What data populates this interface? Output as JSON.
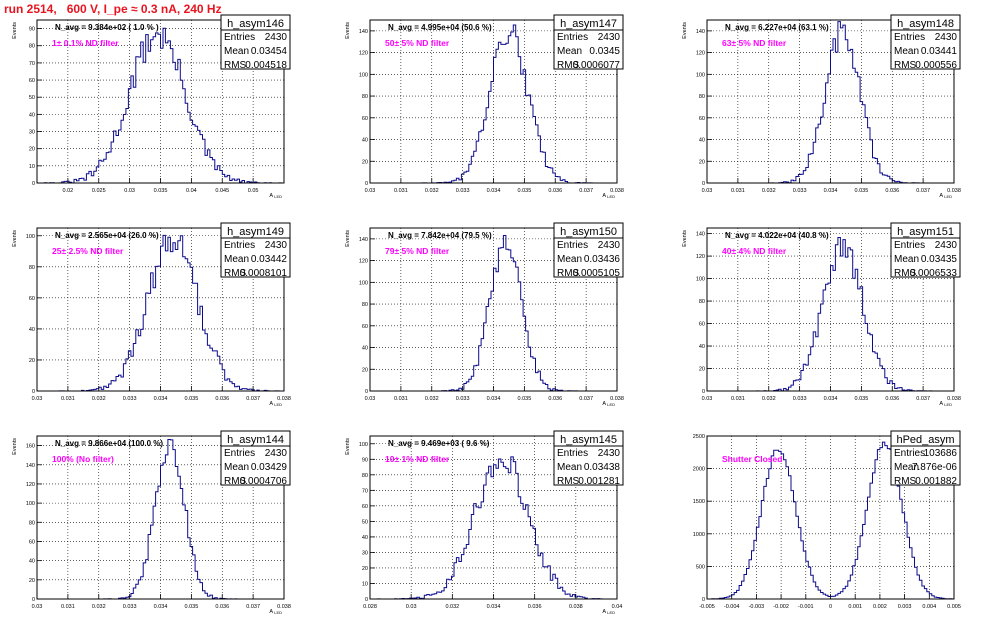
{
  "page": {
    "title": "run 2514,   600 V, I_pe ≈ 0.3 nA, 240 Hz"
  },
  "stat_labels": {
    "entries": "Entries",
    "mean": "Mean",
    "rms": "RMS"
  },
  "colors": {
    "histogram": "#0b0b8c",
    "title": "#e8141f",
    "annotation": "#ff00ff",
    "frame": "#000000",
    "grid": "#000000"
  },
  "chart_data": [
    {
      "type": "histogram",
      "name": "h_asym146",
      "ylabel": "Events",
      "xlabel": "A_LED",
      "xlim": [
        0.015,
        0.055
      ],
      "ylim": [
        0,
        95
      ],
      "xticks": [
        "0.02",
        "0.025",
        "0.03",
        "0.035",
        "0.04",
        "0.045",
        "0.05"
      ],
      "yticks": [
        "0",
        "10",
        "20",
        "30",
        "40",
        "50",
        "60",
        "70",
        "80",
        "90"
      ],
      "yticks_values": [
        0,
        10,
        20,
        30,
        40,
        50,
        60,
        70,
        80,
        90
      ],
      "xticks_values": [
        0.02,
        0.025,
        0.03,
        0.035,
        0.04,
        0.045,
        0.05
      ],
      "header": "N_avg = 9.384e+02 ( 1.0 % )",
      "annotation": "1± 0.1% ND filter",
      "stats": {
        "entries": "2430",
        "mean": "0.03454",
        "rms": "0.004518"
      },
      "shape": {
        "peaks": [
          [
            0.0345,
            0.0045,
            87
          ]
        ]
      }
    },
    {
      "type": "histogram",
      "name": "h_asym147",
      "ylabel": "Events",
      "xlabel": "A_LED",
      "xlim": [
        0.03,
        0.038
      ],
      "ylim": [
        0,
        150
      ],
      "xticks": [
        "0.03",
        "0.031",
        "0.032",
        "0.033",
        "0.034",
        "0.035",
        "0.036",
        "0.037",
        "0.038"
      ],
      "xticks_values": [
        0.03,
        0.031,
        0.032,
        0.033,
        0.034,
        0.035,
        0.036,
        0.037,
        0.038
      ],
      "yticks": [
        "0",
        "20",
        "40",
        "60",
        "80",
        "100",
        "120",
        "140"
      ],
      "yticks_values": [
        0,
        20,
        40,
        60,
        80,
        100,
        120,
        140
      ],
      "header": "N_avg = 4.995e+04 (50.6 %)",
      "annotation": "50± 5% ND filter",
      "stats": {
        "entries": "2430",
        "mean": "0.0345",
        "rms": "0.0006077"
      },
      "shape": {
        "peaks": [
          [
            0.0345,
            0.00061,
            140
          ]
        ]
      }
    },
    {
      "type": "histogram",
      "name": "h_asym148",
      "ylabel": "Events",
      "xlabel": "A_LED",
      "xlim": [
        0.03,
        0.038
      ],
      "ylim": [
        0,
        150
      ],
      "xticks": [
        "0.03",
        "0.031",
        "0.032",
        "0.033",
        "0.034",
        "0.035",
        "0.036",
        "0.037",
        "0.038"
      ],
      "xticks_values": [
        0.03,
        0.031,
        0.032,
        0.033,
        0.034,
        0.035,
        0.036,
        0.037,
        0.038
      ],
      "yticks": [
        "0",
        "20",
        "40",
        "60",
        "80",
        "100",
        "120",
        "140"
      ],
      "yticks_values": [
        0,
        20,
        40,
        60,
        80,
        100,
        120,
        140
      ],
      "header": "N_avg = 6.227e+04 (63.1 %)",
      "annotation": "63± 5% ND filter",
      "stats": {
        "entries": "2430",
        "mean": "0.03441",
        "rms": "0.000556"
      },
      "shape": {
        "peaks": [
          [
            0.0344,
            0.00056,
            140
          ]
        ]
      }
    },
    {
      "type": "histogram",
      "name": "h_asym149",
      "ylabel": "Events",
      "xlabel": "A_LED",
      "xlim": [
        0.03,
        0.038
      ],
      "ylim": [
        0,
        105
      ],
      "xticks": [
        "0.03",
        "0.031",
        "0.032",
        "0.033",
        "0.034",
        "0.035",
        "0.036",
        "0.037",
        "0.038"
      ],
      "xticks_values": [
        0.03,
        0.031,
        0.032,
        0.033,
        0.034,
        0.035,
        0.036,
        0.037,
        0.038
      ],
      "yticks": [
        "0",
        "20",
        "40",
        "60",
        "80",
        "100"
      ],
      "yticks_values": [
        0,
        20,
        40,
        60,
        80,
        100
      ],
      "header": "N_avg = 2.565e+04 (26.0 %)",
      "annotation": "25± 2.5% ND filter",
      "stats": {
        "entries": "2430",
        "mean": "0.03442",
        "rms": "0.0008101"
      },
      "shape": {
        "peaks": [
          [
            0.0344,
            0.00081,
            97
          ]
        ]
      }
    },
    {
      "type": "histogram",
      "name": "h_asym150",
      "ylabel": "Events",
      "xlabel": "A_LED",
      "xlim": [
        0.03,
        0.038
      ],
      "ylim": [
        0,
        150
      ],
      "xticks": [
        "0.03",
        "0.031",
        "0.032",
        "0.033",
        "0.034",
        "0.035",
        "0.036",
        "0.037",
        "0.038"
      ],
      "xticks_values": [
        0.03,
        0.031,
        0.032,
        0.033,
        0.034,
        0.035,
        0.036,
        0.037,
        0.038
      ],
      "yticks": [
        "0",
        "20",
        "40",
        "60",
        "80",
        "100",
        "120",
        "140"
      ],
      "yticks_values": [
        0,
        20,
        40,
        60,
        80,
        100,
        120,
        140
      ],
      "header": "N_avg = 7.842e+04 (79.5 %)",
      "annotation": "79± 5% ND filter",
      "stats": {
        "entries": "2430",
        "mean": "0.03436",
        "rms": "0.0005105"
      },
      "shape": {
        "peaks": [
          [
            0.0344,
            0.00051,
            140
          ]
        ]
      }
    },
    {
      "type": "histogram",
      "name": "h_asym151",
      "ylabel": "Events",
      "xlabel": "A_LED",
      "xlim": [
        0.03,
        0.038
      ],
      "ylim": [
        0,
        145
      ],
      "xticks": [
        "0.03",
        "0.031",
        "0.032",
        "0.033",
        "0.034",
        "0.035",
        "0.036",
        "0.037",
        "0.038"
      ],
      "xticks_values": [
        0.03,
        0.031,
        0.032,
        0.033,
        0.034,
        0.035,
        0.036,
        0.037,
        0.038
      ],
      "yticks": [
        "0",
        "20",
        "40",
        "60",
        "80",
        "100",
        "120",
        "140"
      ],
      "yticks_values": [
        0,
        20,
        40,
        60,
        80,
        100,
        120,
        140
      ],
      "header": "N_avg = 4.022e+04 (40.8 %)",
      "annotation": "40± 4% ND filter",
      "stats": {
        "entries": "2430",
        "mean": "0.03435",
        "rms": "0.0006533"
      },
      "shape": {
        "peaks": [
          [
            0.0344,
            0.00065,
            128
          ]
        ]
      }
    },
    {
      "type": "histogram",
      "name": "h_asym144",
      "ylabel": "Events",
      "xlabel": "A_LED",
      "xlim": [
        0.03,
        0.038
      ],
      "ylim": [
        0,
        170
      ],
      "xticks": [
        "0.03",
        "0.031",
        "0.032",
        "0.033",
        "0.034",
        "0.035",
        "0.036",
        "0.037",
        "0.038"
      ],
      "xticks_values": [
        0.03,
        0.031,
        0.032,
        0.033,
        0.034,
        0.035,
        0.036,
        0.037,
        0.038
      ],
      "yticks": [
        "0",
        "20",
        "40",
        "60",
        "80",
        "100",
        "120",
        "140",
        "160"
      ],
      "yticks_values": [
        0,
        20,
        40,
        60,
        80,
        100,
        120,
        140,
        160
      ],
      "header": "N_avg = 9.866e+04 (100.0 %)",
      "annotation": "100% (No filter)",
      "stats": {
        "entries": "2430",
        "mean": "0.03429",
        "rms": "0.0004706"
      },
      "shape": {
        "peaks": [
          [
            0.0343,
            0.00047,
            163
          ]
        ]
      }
    },
    {
      "type": "histogram",
      "name": "h_asym145",
      "ylabel": "Events",
      "xlabel": "A_LED",
      "xlim": [
        0.028,
        0.04
      ],
      "ylim": [
        0,
        105
      ],
      "xticks": [
        "0.028",
        "0.03",
        "0.032",
        "0.034",
        "0.036",
        "0.038",
        "0.04"
      ],
      "xticks_values": [
        0.028,
        0.03,
        0.032,
        0.034,
        0.036,
        0.038,
        0.04
      ],
      "yticks": [
        "0",
        "10",
        "20",
        "30",
        "40",
        "50",
        "60",
        "70",
        "80",
        "90",
        "100"
      ],
      "yticks_values": [
        0,
        10,
        20,
        30,
        40,
        50,
        60,
        70,
        80,
        90,
        100
      ],
      "header": "N_avg = 9.469e+03 ( 9.6 %)",
      "annotation": "10± 1% ND filter",
      "stats": {
        "entries": "2430",
        "mean": "0.03438",
        "rms": "0.001281"
      },
      "shape": {
        "peaks": [
          [
            0.0344,
            0.00128,
            92
          ]
        ]
      }
    },
    {
      "type": "histogram",
      "name": "hPed_asym",
      "ylabel": "",
      "xlabel": "",
      "xlim": [
        -0.005,
        0.005
      ],
      "ylim": [
        0,
        2500
      ],
      "xticks": [
        "-0.005",
        "-0.004",
        "-0.003",
        "-0.002",
        "-0.001",
        "0",
        "0.001",
        "0.002",
        "0.003",
        "0.004",
        "0.005"
      ],
      "xticks_values": [
        -0.005,
        -0.004,
        -0.003,
        -0.002,
        -0.001,
        0,
        0.001,
        0.002,
        0.003,
        0.004,
        0.005
      ],
      "yticks": [
        "0",
        "500",
        "1000",
        "1500",
        "2000",
        "2500"
      ],
      "yticks_values": [
        0,
        500,
        1000,
        1500,
        2000,
        2500
      ],
      "header": "",
      "annotation": "Shutter Closed",
      "stats": {
        "entries": "103686",
        "mean": "7.876e-06",
        "rms": "0.001882"
      },
      "shape": {
        "peaks": [
          [
            -0.0021,
            0.0007,
            2300
          ],
          [
            0.0022,
            0.0007,
            2400
          ]
        ]
      }
    }
  ]
}
